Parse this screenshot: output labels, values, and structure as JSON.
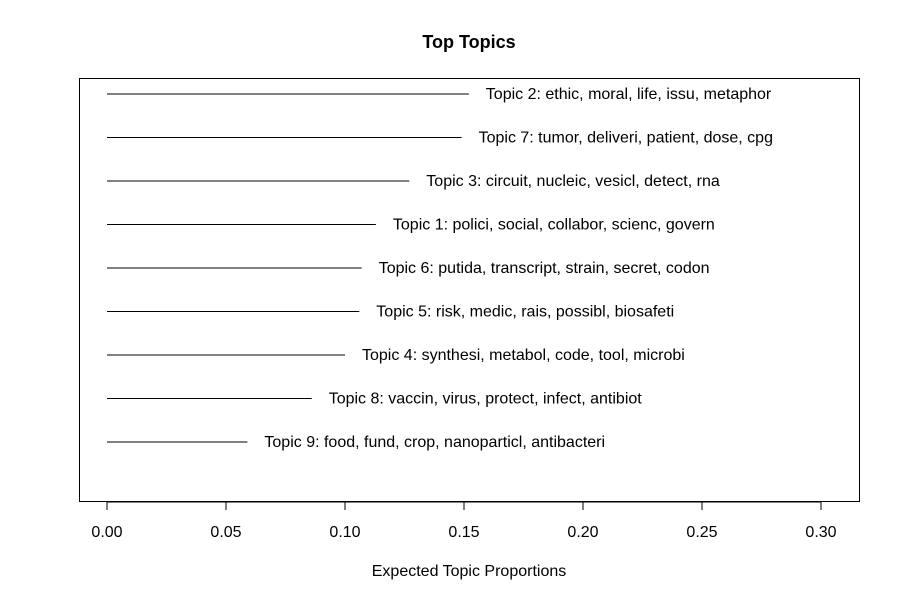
{
  "chart_data": {
    "type": "bar",
    "orientation": "horizontal",
    "title": "Top Topics",
    "xlabel": "Expected Topic Proportions",
    "ylabel": "",
    "xlim": [
      0,
      0.3
    ],
    "x_ticks": [
      "0.00",
      "0.05",
      "0.10",
      "0.15",
      "0.20",
      "0.25",
      "0.30"
    ],
    "grid": false,
    "categories": [
      "Topic 2: ethic, moral, life, issu, metaphor",
      "Topic 7: tumor, deliveri, patient, dose, cpg",
      "Topic 3: circuit, nucleic, vesicl, detect, rna",
      "Topic 1: polici, social, collabor, scienc, govern",
      "Topic 6: putida, transcript, strain, secret, codon",
      "Topic 5: risk, medic, rais, possibl, biosafeti",
      "Topic 4: synthesi, metabol, code, tool, microbi",
      "Topic 8: vaccin, virus, protect, infect, antibiot",
      "Topic 9: food, fund, crop, nanoparticl, antibacteri"
    ],
    "values": [
      0.152,
      0.149,
      0.127,
      0.113,
      0.107,
      0.106,
      0.1,
      0.086,
      0.059
    ]
  }
}
